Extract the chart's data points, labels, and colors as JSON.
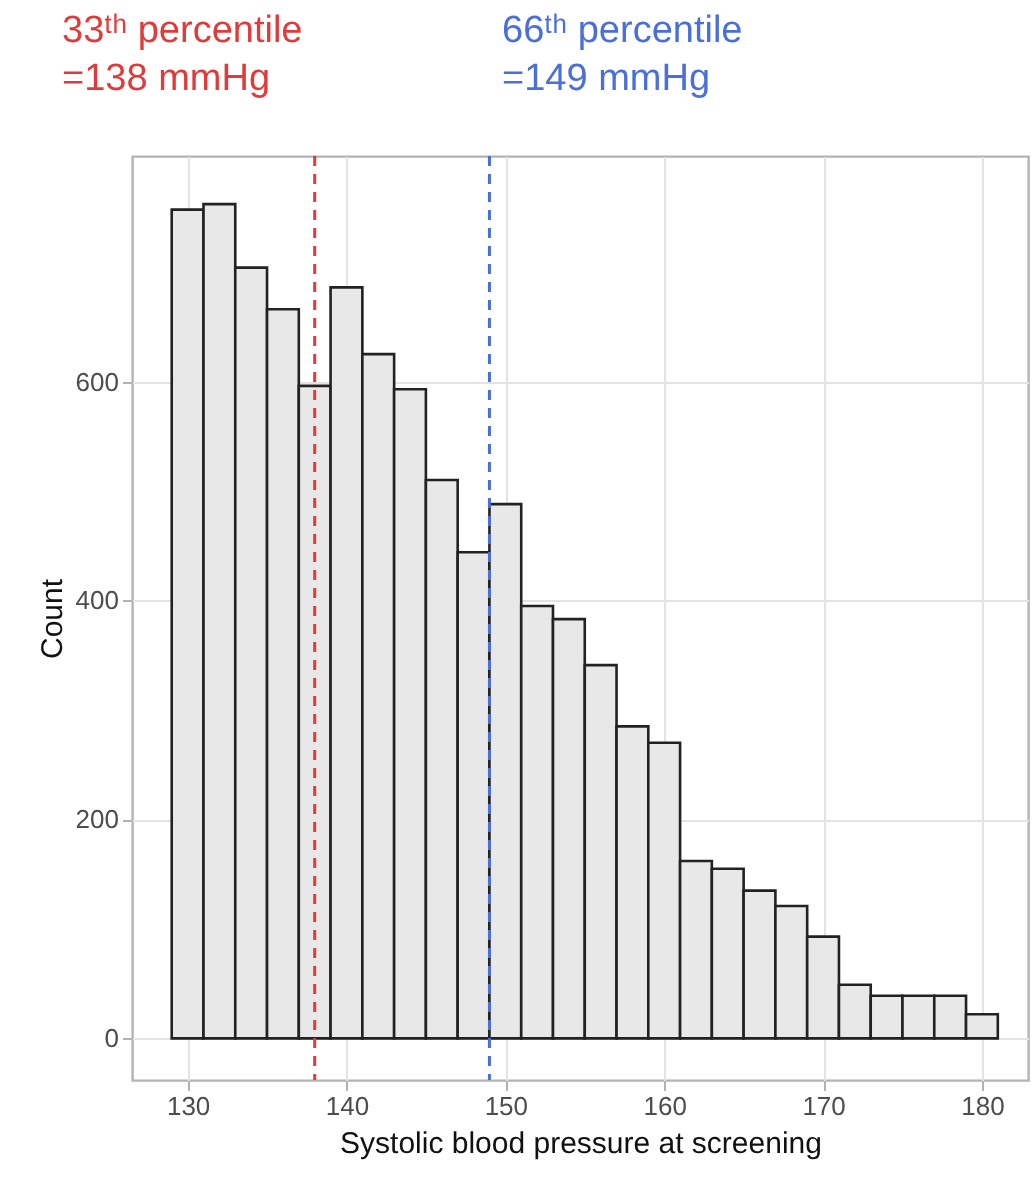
{
  "chart_data": {
    "type": "histogram",
    "xlabel": "Systolic blood pressure at screening",
    "ylabel": "Count",
    "bins": [
      129,
      131,
      133,
      135,
      137,
      139,
      141,
      143,
      145,
      147,
      149,
      151,
      153,
      155,
      157,
      159,
      161,
      163,
      165,
      167,
      169,
      171,
      173,
      175,
      177,
      179,
      181
    ],
    "values": [
      757,
      762,
      704,
      666,
      596,
      686,
      625,
      593,
      510,
      444,
      488,
      395,
      383,
      341,
      285,
      270,
      162,
      155,
      135,
      121,
      93,
      49,
      39,
      39,
      39,
      22
    ],
    "color": "#e8e8e8",
    "xlim": [
      126.5,
      182.9
    ],
    "xticks": [
      130,
      140,
      150,
      160,
      170,
      180
    ],
    "ylim": [
      -38,
      806
    ],
    "yticks": [
      0,
      200,
      400,
      600
    ],
    "grid": true,
    "ref_lines": [
      {
        "axis": "x",
        "value": 138,
        "label": "33ᵗʰ percentile\n=138 mmHg",
        "color": "#e03a3a",
        "line_style": "dashed"
      },
      {
        "axis": "x",
        "value": 149,
        "label": "66ᵗʰ percentile\n=149 mmHg",
        "color": "#4a6fd8",
        "line_style": "dashed"
      }
    ]
  }
}
